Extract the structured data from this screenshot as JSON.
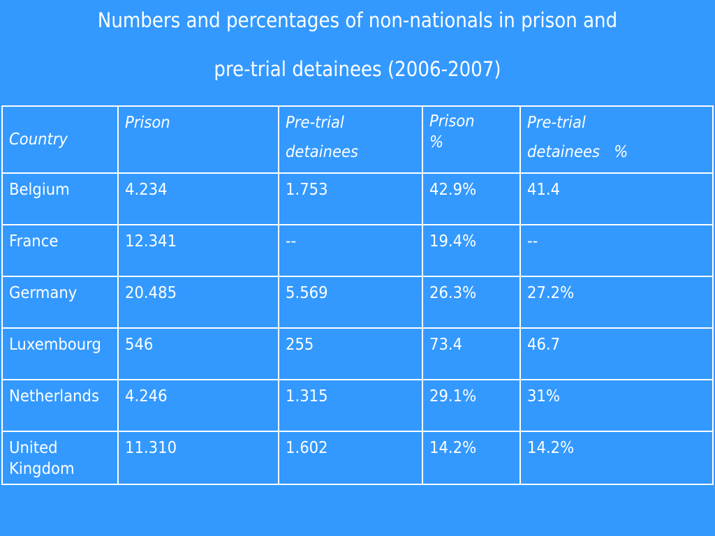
{
  "title": {
    "line1": "Numbers and percentages of non-nationals in prison and",
    "line2": "pre-trial detainees (2006-2007)"
  },
  "table": {
    "headers": {
      "country": "Country",
      "prison": "Prison",
      "pretrial_line1": "Pre-trial",
      "pretrial_line2": "detainees",
      "prison_pct_line1": "Prison",
      "prison_pct_line2": "%",
      "pretrial_pct_line1": "Pre-trial",
      "pretrial_pct_line2": "detainees   %"
    },
    "rows": [
      {
        "country": "Belgium",
        "prison": "4.234",
        "pretrial": "1.753",
        "prison_pct": "42.9%",
        "pretrial_pct": "41.4"
      },
      {
        "country": "France",
        "prison": "12.341",
        "pretrial": "--",
        "prison_pct": "19.4%",
        "pretrial_pct": "--"
      },
      {
        "country": "Germany",
        "prison": "20.485",
        "pretrial": "5.569",
        "prison_pct": "26.3%",
        "pretrial_pct": "27.2%"
      },
      {
        "country": "Luxembourg",
        "prison": "546",
        "pretrial": "255",
        "prison_pct": "73.4",
        "pretrial_pct": "46.7"
      },
      {
        "country": "Netherlands",
        "prison": "4.246",
        "pretrial": "1.315",
        "prison_pct": "29.1%",
        "pretrial_pct": "31%"
      },
      {
        "country_line1": "United",
        "country_line2": "Kingdom",
        "prison": "11.310",
        "pretrial": "1.602",
        "prison_pct": "14.2%",
        "pretrial_pct": "14.2%"
      }
    ]
  }
}
